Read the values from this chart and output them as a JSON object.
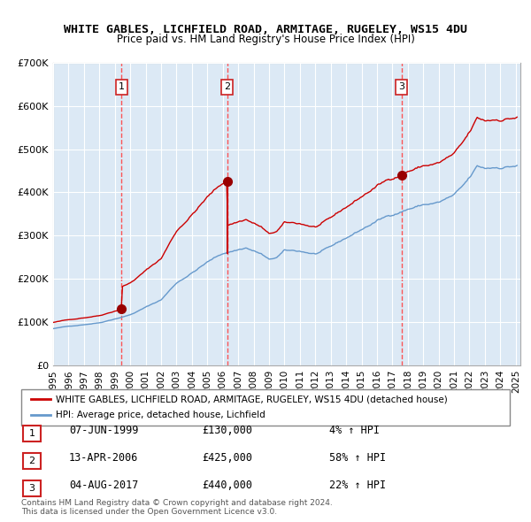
{
  "title": "WHITE GABLES, LICHFIELD ROAD, ARMITAGE, RUGELEY, WS15 4DU",
  "subtitle": "Price paid vs. HM Land Registry's House Price Index (HPI)",
  "legend_line1": "WHITE GABLES, LICHFIELD ROAD, ARMITAGE, RUGELEY, WS15 4DU (detached house)",
  "legend_line2": "HPI: Average price, detached house, Lichfield",
  "footnote": "Contains HM Land Registry data © Crown copyright and database right 2024.\nThis data is licensed under the Open Government Licence v3.0.",
  "transactions": [
    {
      "label": "1",
      "date": "07-JUN-1999",
      "price": 130000,
      "change": "4% ↑ HPI",
      "year": 1999.44
    },
    {
      "label": "2",
      "date": "13-APR-2006",
      "price": 425000,
      "change": "58% ↑ HPI",
      "year": 2006.28
    },
    {
      "label": "3",
      "date": "04-AUG-2017",
      "price": 440000,
      "change": "22% ↑ HPI",
      "year": 2017.59
    }
  ],
  "ylabel_ticks": [
    "£0",
    "£100K",
    "£200K",
    "£300K",
    "£400K",
    "£500K",
    "£600K",
    "£700K"
  ],
  "ytick_vals": [
    0,
    100000,
    200000,
    300000,
    400000,
    500000,
    600000,
    700000
  ],
  "ylim": [
    0,
    700000
  ],
  "xlim_start": 1995.0,
  "xlim_end": 2025.3,
  "background_color": "#dce9f5",
  "plot_bg_color": "#dce9f5",
  "red_line_color": "#cc0000",
  "blue_line_color": "#6699cc",
  "marker_color": "#990000",
  "vline_color": "#ff4444",
  "box_color": "#cc2222",
  "grid_color": "#ffffff",
  "xticks": [
    1995,
    1996,
    1997,
    1998,
    1999,
    2000,
    2001,
    2002,
    2003,
    2004,
    2005,
    2006,
    2007,
    2008,
    2009,
    2010,
    2011,
    2012,
    2013,
    2014,
    2015,
    2016,
    2017,
    2018,
    2019,
    2020,
    2021,
    2022,
    2023,
    2024,
    2025
  ]
}
